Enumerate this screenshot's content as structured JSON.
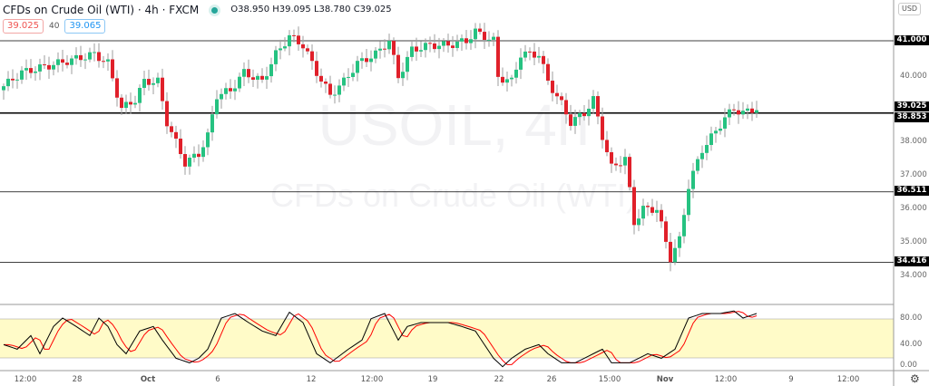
{
  "header": {
    "title": "CFDs on Crude Oil (WTI) · 4h · FXCM",
    "ohlc": "O38.950 H39.095 L38.780 C39.025",
    "status_color": "#26a69a"
  },
  "quote": {
    "bid": "39.025",
    "spread": "40",
    "ask": "39.065"
  },
  "watermark": {
    "symbol": "USOIL, 4h",
    "description": "CFDs on Crude Oil (WTI)"
  },
  "axis": {
    "currency": "USD",
    "price_ticks": [
      "40.000",
      "38.000",
      "37.000",
      "36.000",
      "35.000",
      "34.000"
    ],
    "osc_ticks": [
      "80.00",
      "40.00",
      "0.00"
    ],
    "time_ticks": [
      "12:00",
      "28",
      "Oct",
      "6",
      "12",
      "12:00",
      "19",
      "22",
      "26",
      "15:00",
      "Nov",
      "12:00",
      "9",
      "12:00"
    ]
  },
  "levels": [
    {
      "label": "41.000",
      "price": 41.0
    },
    {
      "label": "39.025",
      "price": 39.025
    },
    {
      "label": "38.853",
      "price": 38.853
    },
    {
      "label": "36.511",
      "price": 36.511
    },
    {
      "label": "34.416",
      "price": 34.416
    }
  ],
  "colors": {
    "up": "#26c281",
    "down": "#e0202a",
    "band": "#fffbc8",
    "stoch_k": "#000000",
    "stoch_d": "#ff0000"
  },
  "price_path": [
    [
      0,
      39.65
    ],
    [
      4,
      40.06
    ],
    [
      12,
      40.33
    ],
    [
      20,
      40.6
    ],
    [
      23,
      40.33
    ],
    [
      26,
      38.98
    ],
    [
      29,
      39.25
    ],
    [
      31,
      39.79
    ],
    [
      34,
      39.79
    ],
    [
      36,
      38.58
    ],
    [
      40,
      37.37
    ],
    [
      43,
      37.64
    ],
    [
      45,
      38.17
    ],
    [
      47,
      39.38
    ],
    [
      50,
      39.52
    ],
    [
      53,
      40.06
    ],
    [
      57,
      39.79
    ],
    [
      60,
      40.6
    ],
    [
      63,
      41.13
    ],
    [
      66,
      40.87
    ],
    [
      69,
      40.06
    ],
    [
      72,
      39.38
    ],
    [
      75,
      39.79
    ],
    [
      78,
      40.33
    ],
    [
      82,
      40.6
    ],
    [
      85,
      41.0
    ],
    [
      87,
      39.92
    ],
    [
      90,
      40.73
    ],
    [
      94,
      40.87
    ],
    [
      98,
      40.87
    ],
    [
      102,
      41.0
    ],
    [
      104,
      41.27
    ],
    [
      108,
      41.0
    ],
    [
      109,
      39.92
    ],
    [
      112,
      39.79
    ],
    [
      114,
      40.6
    ],
    [
      118,
      40.6
    ],
    [
      120,
      39.79
    ],
    [
      123,
      39.12
    ],
    [
      125,
      38.58
    ],
    [
      128,
      38.85
    ],
    [
      130,
      39.25
    ],
    [
      132,
      38.17
    ],
    [
      134,
      37.23
    ],
    [
      137,
      37.5
    ],
    [
      139,
      35.6
    ],
    [
      141,
      36.0
    ],
    [
      144,
      36.0
    ],
    [
      147,
      34.54
    ],
    [
      149,
      35.08
    ],
    [
      151,
      36.69
    ],
    [
      154,
      37.77
    ],
    [
      157,
      38.31
    ],
    [
      159,
      38.71
    ],
    [
      161,
      38.98
    ],
    [
      163,
      38.85
    ],
    [
      166,
      39.0
    ]
  ],
  "stoch_path": [
    [
      0,
      40
    ],
    [
      3,
      33
    ],
    [
      6,
      54
    ],
    [
      8,
      26
    ],
    [
      11,
      68
    ],
    [
      13,
      81
    ],
    [
      16,
      68
    ],
    [
      19,
      54
    ],
    [
      21,
      81
    ],
    [
      23,
      68
    ],
    [
      25,
      40
    ],
    [
      27,
      26
    ],
    [
      30,
      61
    ],
    [
      33,
      68
    ],
    [
      35,
      47
    ],
    [
      38,
      19
    ],
    [
      41,
      12
    ],
    [
      43,
      19
    ],
    [
      45,
      33
    ],
    [
      48,
      81
    ],
    [
      51,
      88
    ],
    [
      54,
      74
    ],
    [
      57,
      61
    ],
    [
      60,
      54
    ],
    [
      63,
      90
    ],
    [
      66,
      74
    ],
    [
      69,
      26
    ],
    [
      72,
      12
    ],
    [
      76,
      33
    ],
    [
      79,
      47
    ],
    [
      81,
      80
    ],
    [
      84,
      88
    ],
    [
      87,
      47
    ],
    [
      89,
      68
    ],
    [
      92,
      74
    ],
    [
      98,
      74
    ],
    [
      101,
      68
    ],
    [
      104,
      61
    ],
    [
      108,
      19
    ],
    [
      110,
      6
    ],
    [
      112,
      19
    ],
    [
      115,
      33
    ],
    [
      118,
      40
    ],
    [
      120,
      26
    ],
    [
      123,
      12
    ],
    [
      126,
      12
    ],
    [
      130,
      26
    ],
    [
      132,
      33
    ],
    [
      134,
      12
    ],
    [
      138,
      12
    ],
    [
      142,
      26
    ],
    [
      145,
      19
    ],
    [
      148,
      33
    ],
    [
      151,
      81
    ],
    [
      154,
      88
    ],
    [
      158,
      88
    ],
    [
      161,
      92
    ],
    [
      163,
      81
    ],
    [
      166,
      88
    ]
  ]
}
